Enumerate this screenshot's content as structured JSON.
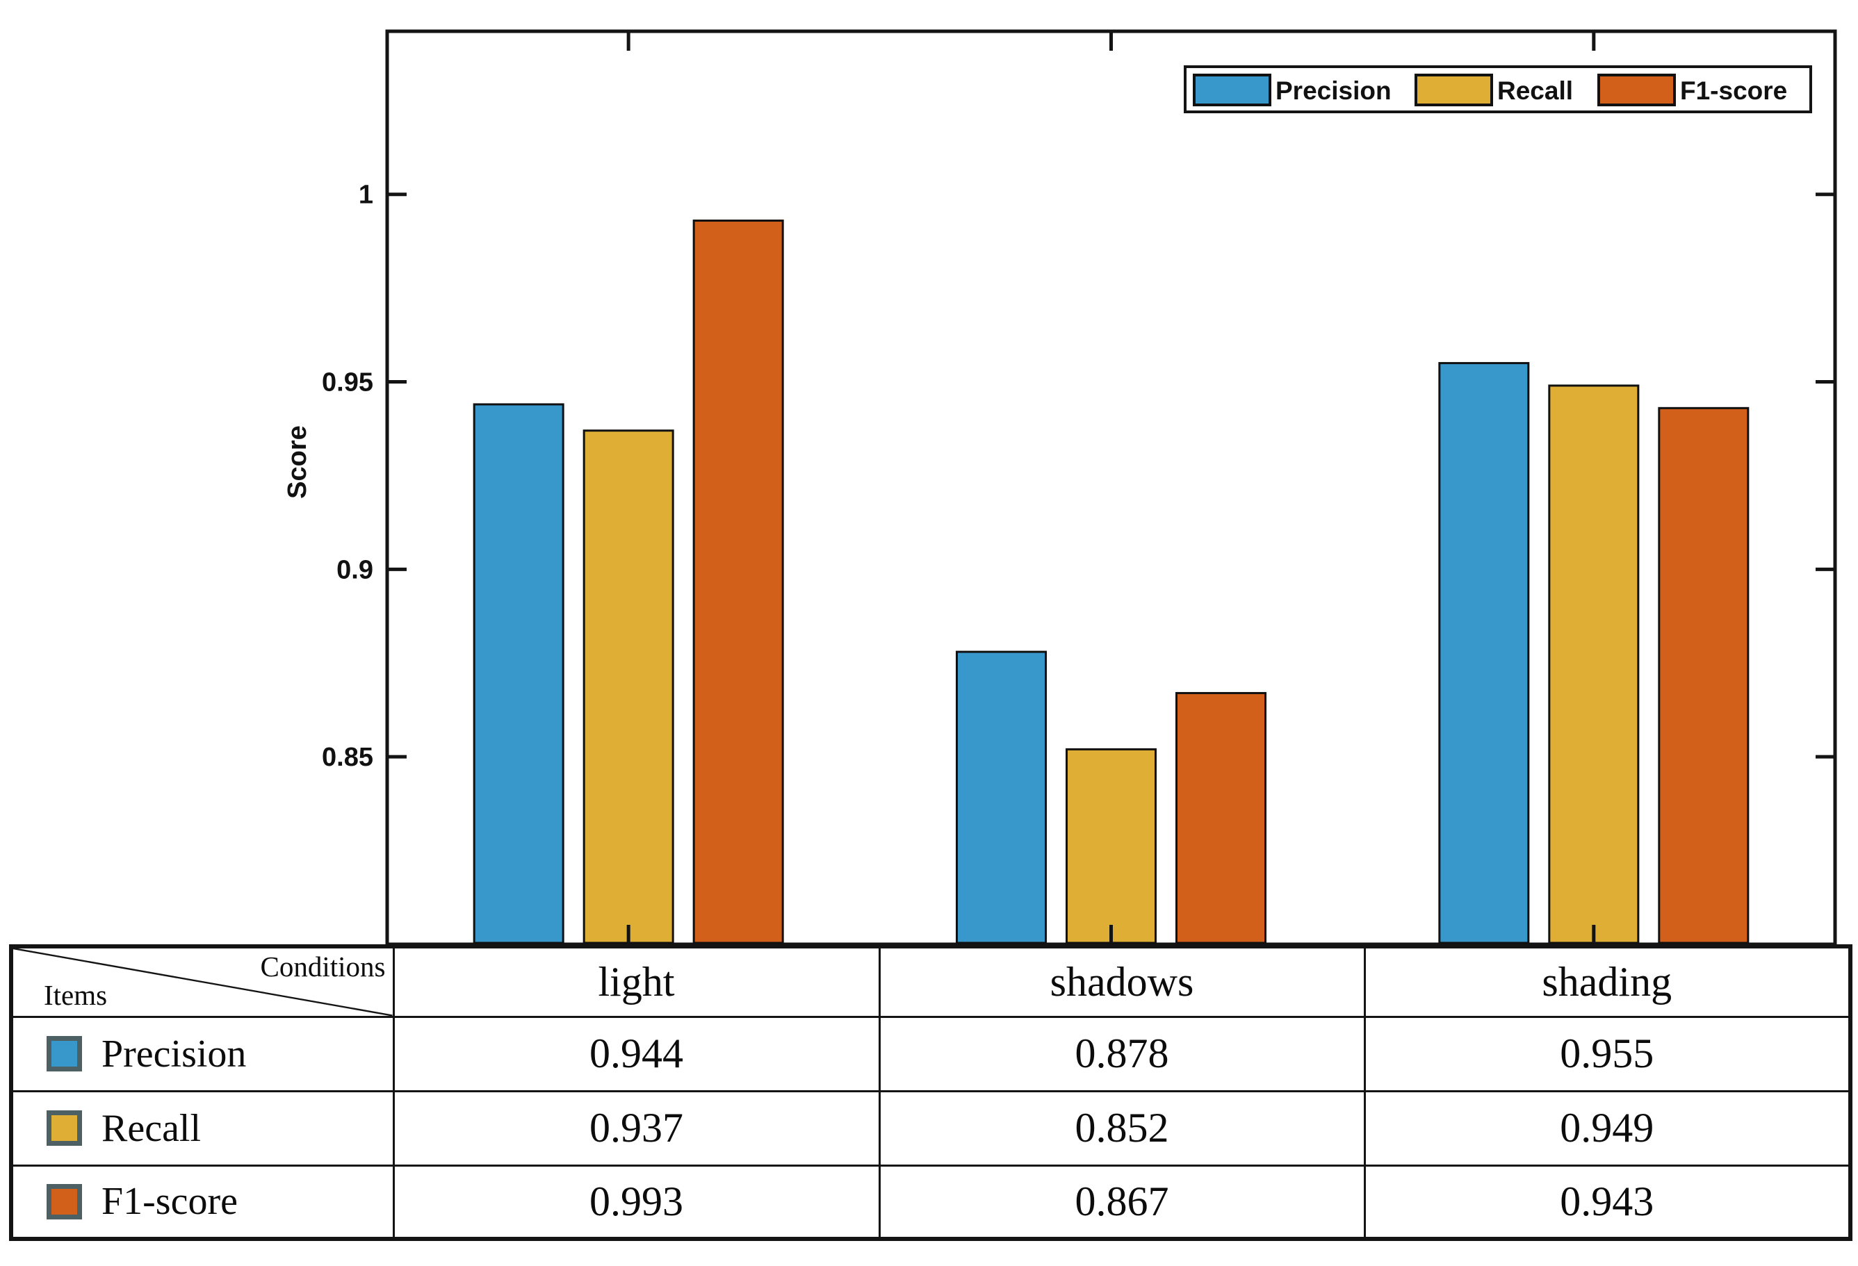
{
  "chart_data": {
    "type": "bar",
    "title": "",
    "categories": [
      "light",
      "shadows",
      "shading"
    ],
    "series": [
      {
        "name": "Precision",
        "color": "#3897cb",
        "values": [
          0.944,
          0.878,
          0.955
        ]
      },
      {
        "name": "Recall",
        "color": "#dfae35",
        "values": [
          0.937,
          0.852,
          0.949
        ]
      },
      {
        "name": "F1-score",
        "color": "#d2601b",
        "values": [
          0.993,
          0.867,
          0.943
        ]
      }
    ],
    "xlabel": "",
    "ylabel": "Score",
    "ylim": [
      0.8,
      1.0435
    ],
    "baseline": 0.8,
    "yticks": [
      1,
      0.95,
      0.9,
      0.85
    ],
    "ytick_labels": [
      "1",
      "0.95",
      "0.9",
      "0.85"
    ],
    "grid": false,
    "legend_position": "top-right",
    "legend_labels": [
      "Precision",
      "Recall",
      "F1-score"
    ]
  },
  "colors": {
    "axis_line": "#141414",
    "bar_edge": "#111111",
    "text": "#111111",
    "swatch_border": "#4d6064",
    "background": "#ffffff"
  },
  "table": {
    "corner_top_right": "Conditions",
    "corner_bottom_left": "Items",
    "columns": [
      "light",
      "shadows",
      "shading"
    ],
    "rows": [
      {
        "label": "Precision",
        "swatch_color": "#3897cb",
        "values": [
          "0.944",
          "0.878",
          "0.955"
        ]
      },
      {
        "label": "Recall",
        "swatch_color": "#dfae35",
        "values": [
          "0.937",
          "0.852",
          "0.949"
        ]
      },
      {
        "label": "F1-score",
        "swatch_color": "#d2601b",
        "values": [
          "0.993",
          "0.867",
          "0.943"
        ]
      }
    ]
  }
}
